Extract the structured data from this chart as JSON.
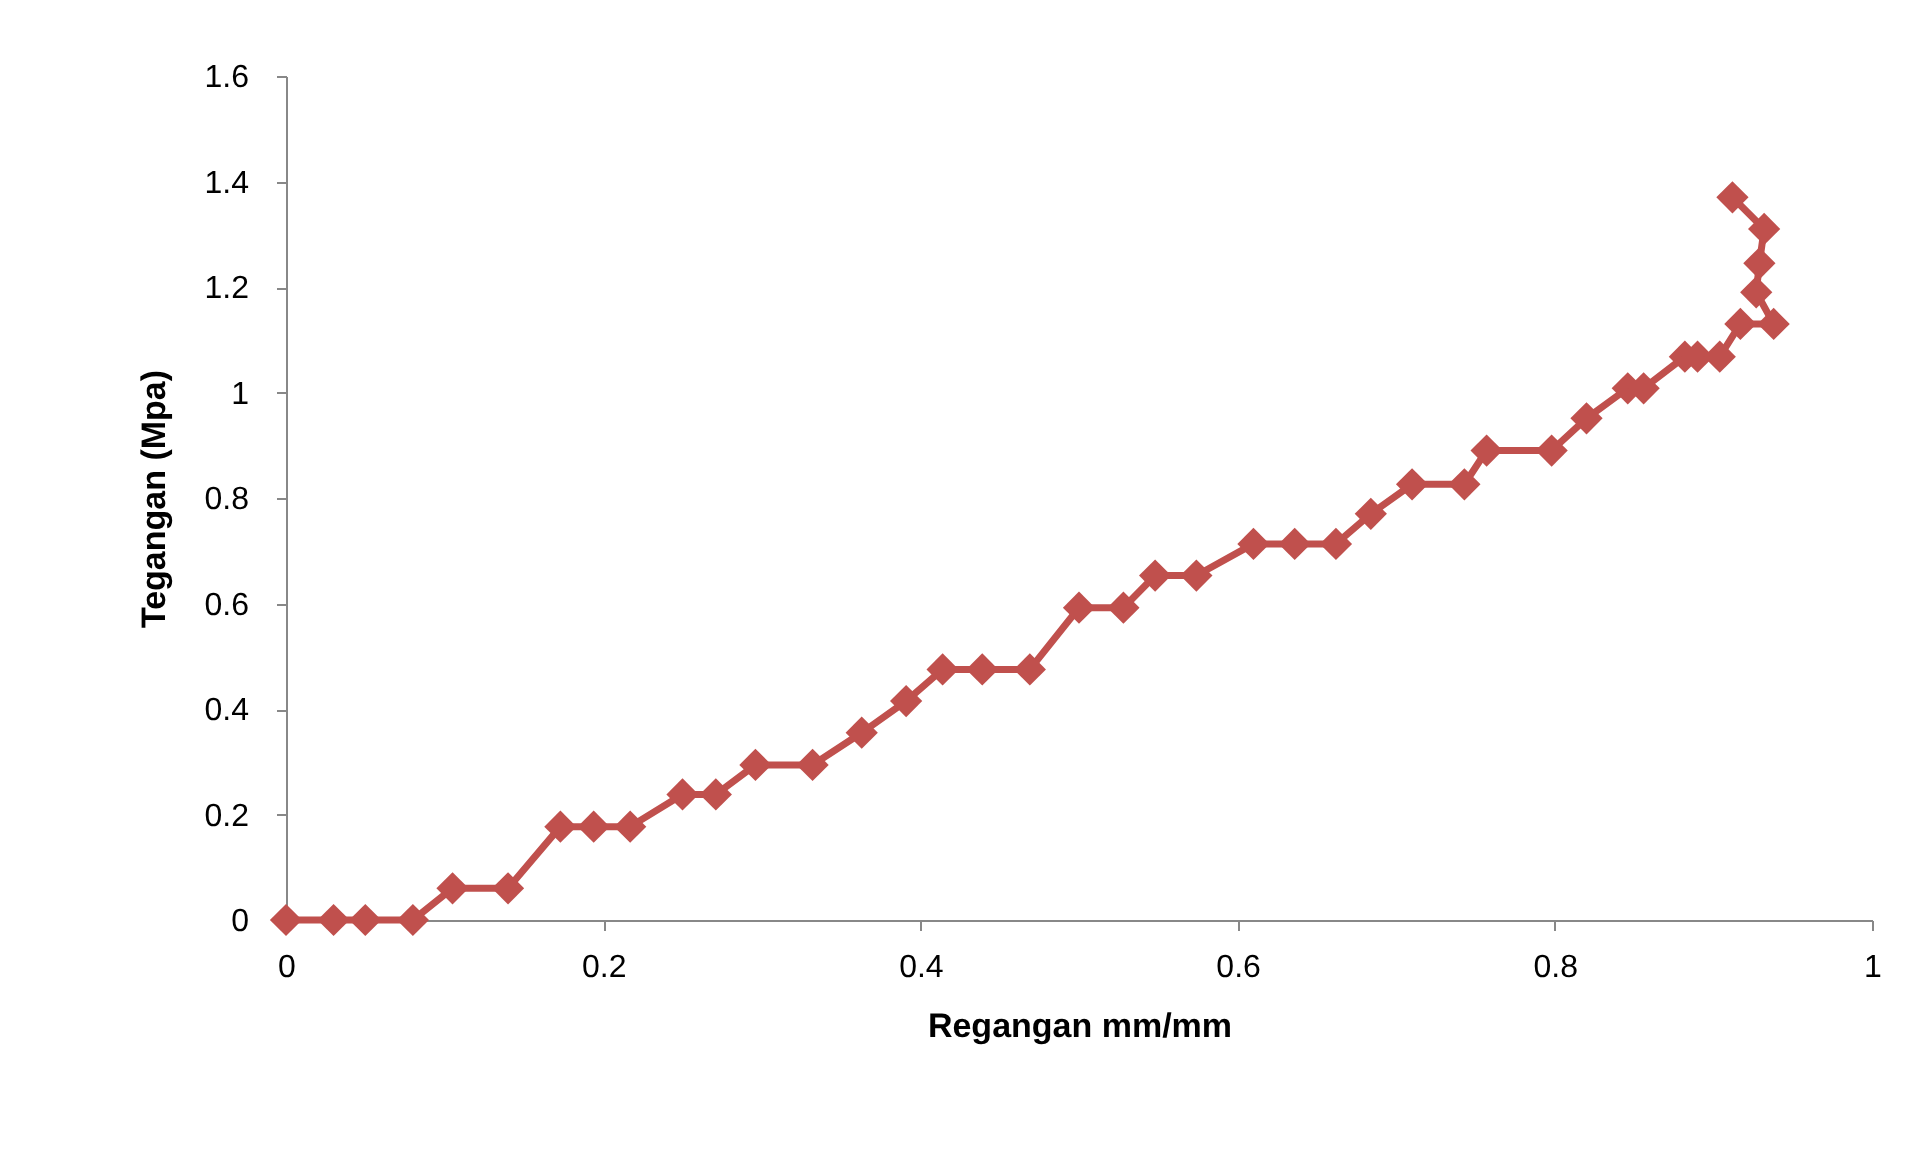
{
  "chart_data": {
    "type": "line",
    "xlabel": "Regangan mm/mm",
    "ylabel": "Tegangan (Mpa)",
    "marker": "diamond",
    "grid": false,
    "xlim": [
      0,
      1
    ],
    "xticks": [
      0,
      0.2,
      0.4,
      0.6,
      0.8,
      1
    ],
    "ylim": [
      0,
      1.6
    ],
    "yticks": [
      0,
      0.2,
      0.4,
      0.6,
      0.8,
      1,
      1.2,
      1.4,
      1.6
    ],
    "series": [
      {
        "color": "#c0504d",
        "x": [
          0,
          0.03,
          0.05,
          0.08,
          0.105,
          0.14,
          0.173,
          0.194,
          0.217,
          0.25,
          0.271,
          0.296,
          0.332,
          0.363,
          0.391,
          0.414,
          0.439,
          0.469,
          0.5,
          0.528,
          0.548,
          0.574,
          0.61,
          0.636,
          0.662,
          0.684,
          0.71,
          0.743,
          0.757,
          0.798,
          0.82,
          0.846,
          0.856,
          0.882,
          0.89,
          0.904,
          0.917,
          0.938,
          0.927,
          0.929,
          0.932,
          0.912
        ],
        "values": [
          0,
          0,
          0,
          0,
          0.06,
          0.06,
          0.177,
          0.177,
          0.177,
          0.238,
          0.238,
          0.294,
          0.294,
          0.355,
          0.415,
          0.475,
          0.475,
          0.475,
          0.592,
          0.592,
          0.653,
          0.653,
          0.713,
          0.713,
          0.713,
          0.77,
          0.826,
          0.826,
          0.89,
          0.89,
          0.951,
          1.008,
          1.008,
          1.068,
          1.068,
          1.068,
          1.13,
          1.13,
          1.19,
          1.245,
          1.31,
          1.37
        ]
      }
    ]
  }
}
